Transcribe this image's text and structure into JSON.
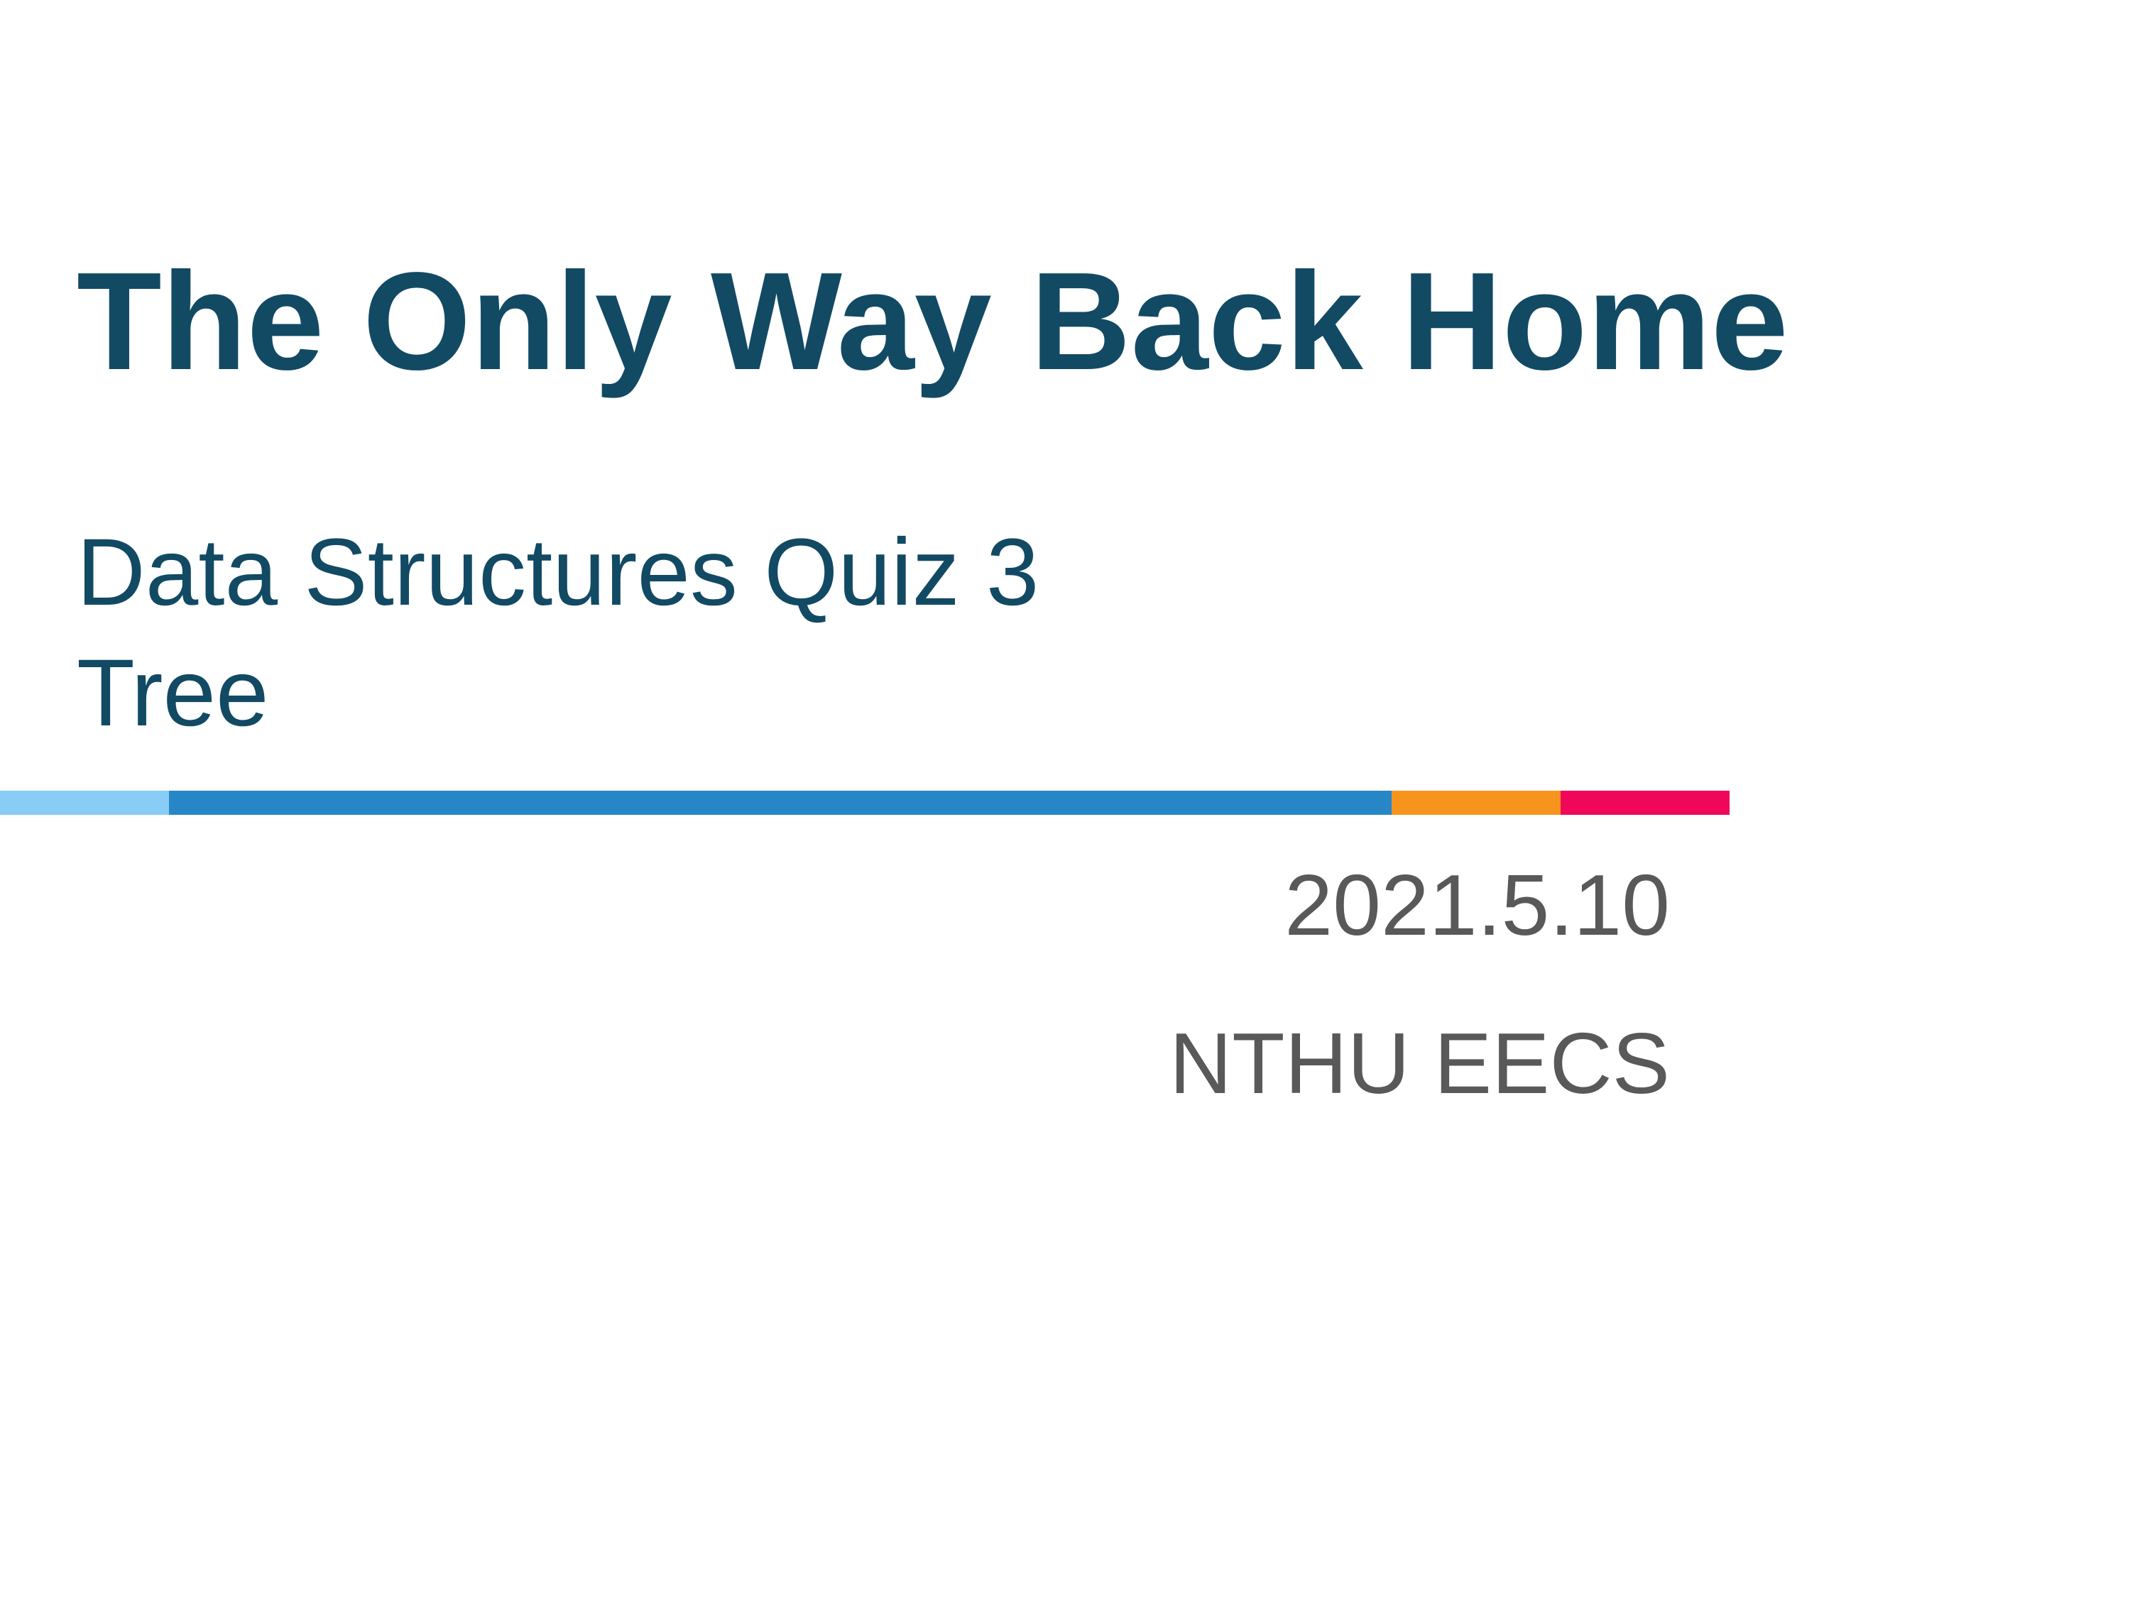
{
  "slide": {
    "title": "The Only Way Back Home",
    "subtitle_lines": [
      "Data Structures Quiz 3",
      "Tree"
    ],
    "date": "2021.5.10",
    "organization": "NTHU EECS"
  },
  "colors": {
    "title": "#124a64",
    "meta_text": "#595959",
    "divider_segments": [
      "#87cdf5",
      "#2787c6",
      "#f7941e",
      "#f0075a"
    ]
  }
}
